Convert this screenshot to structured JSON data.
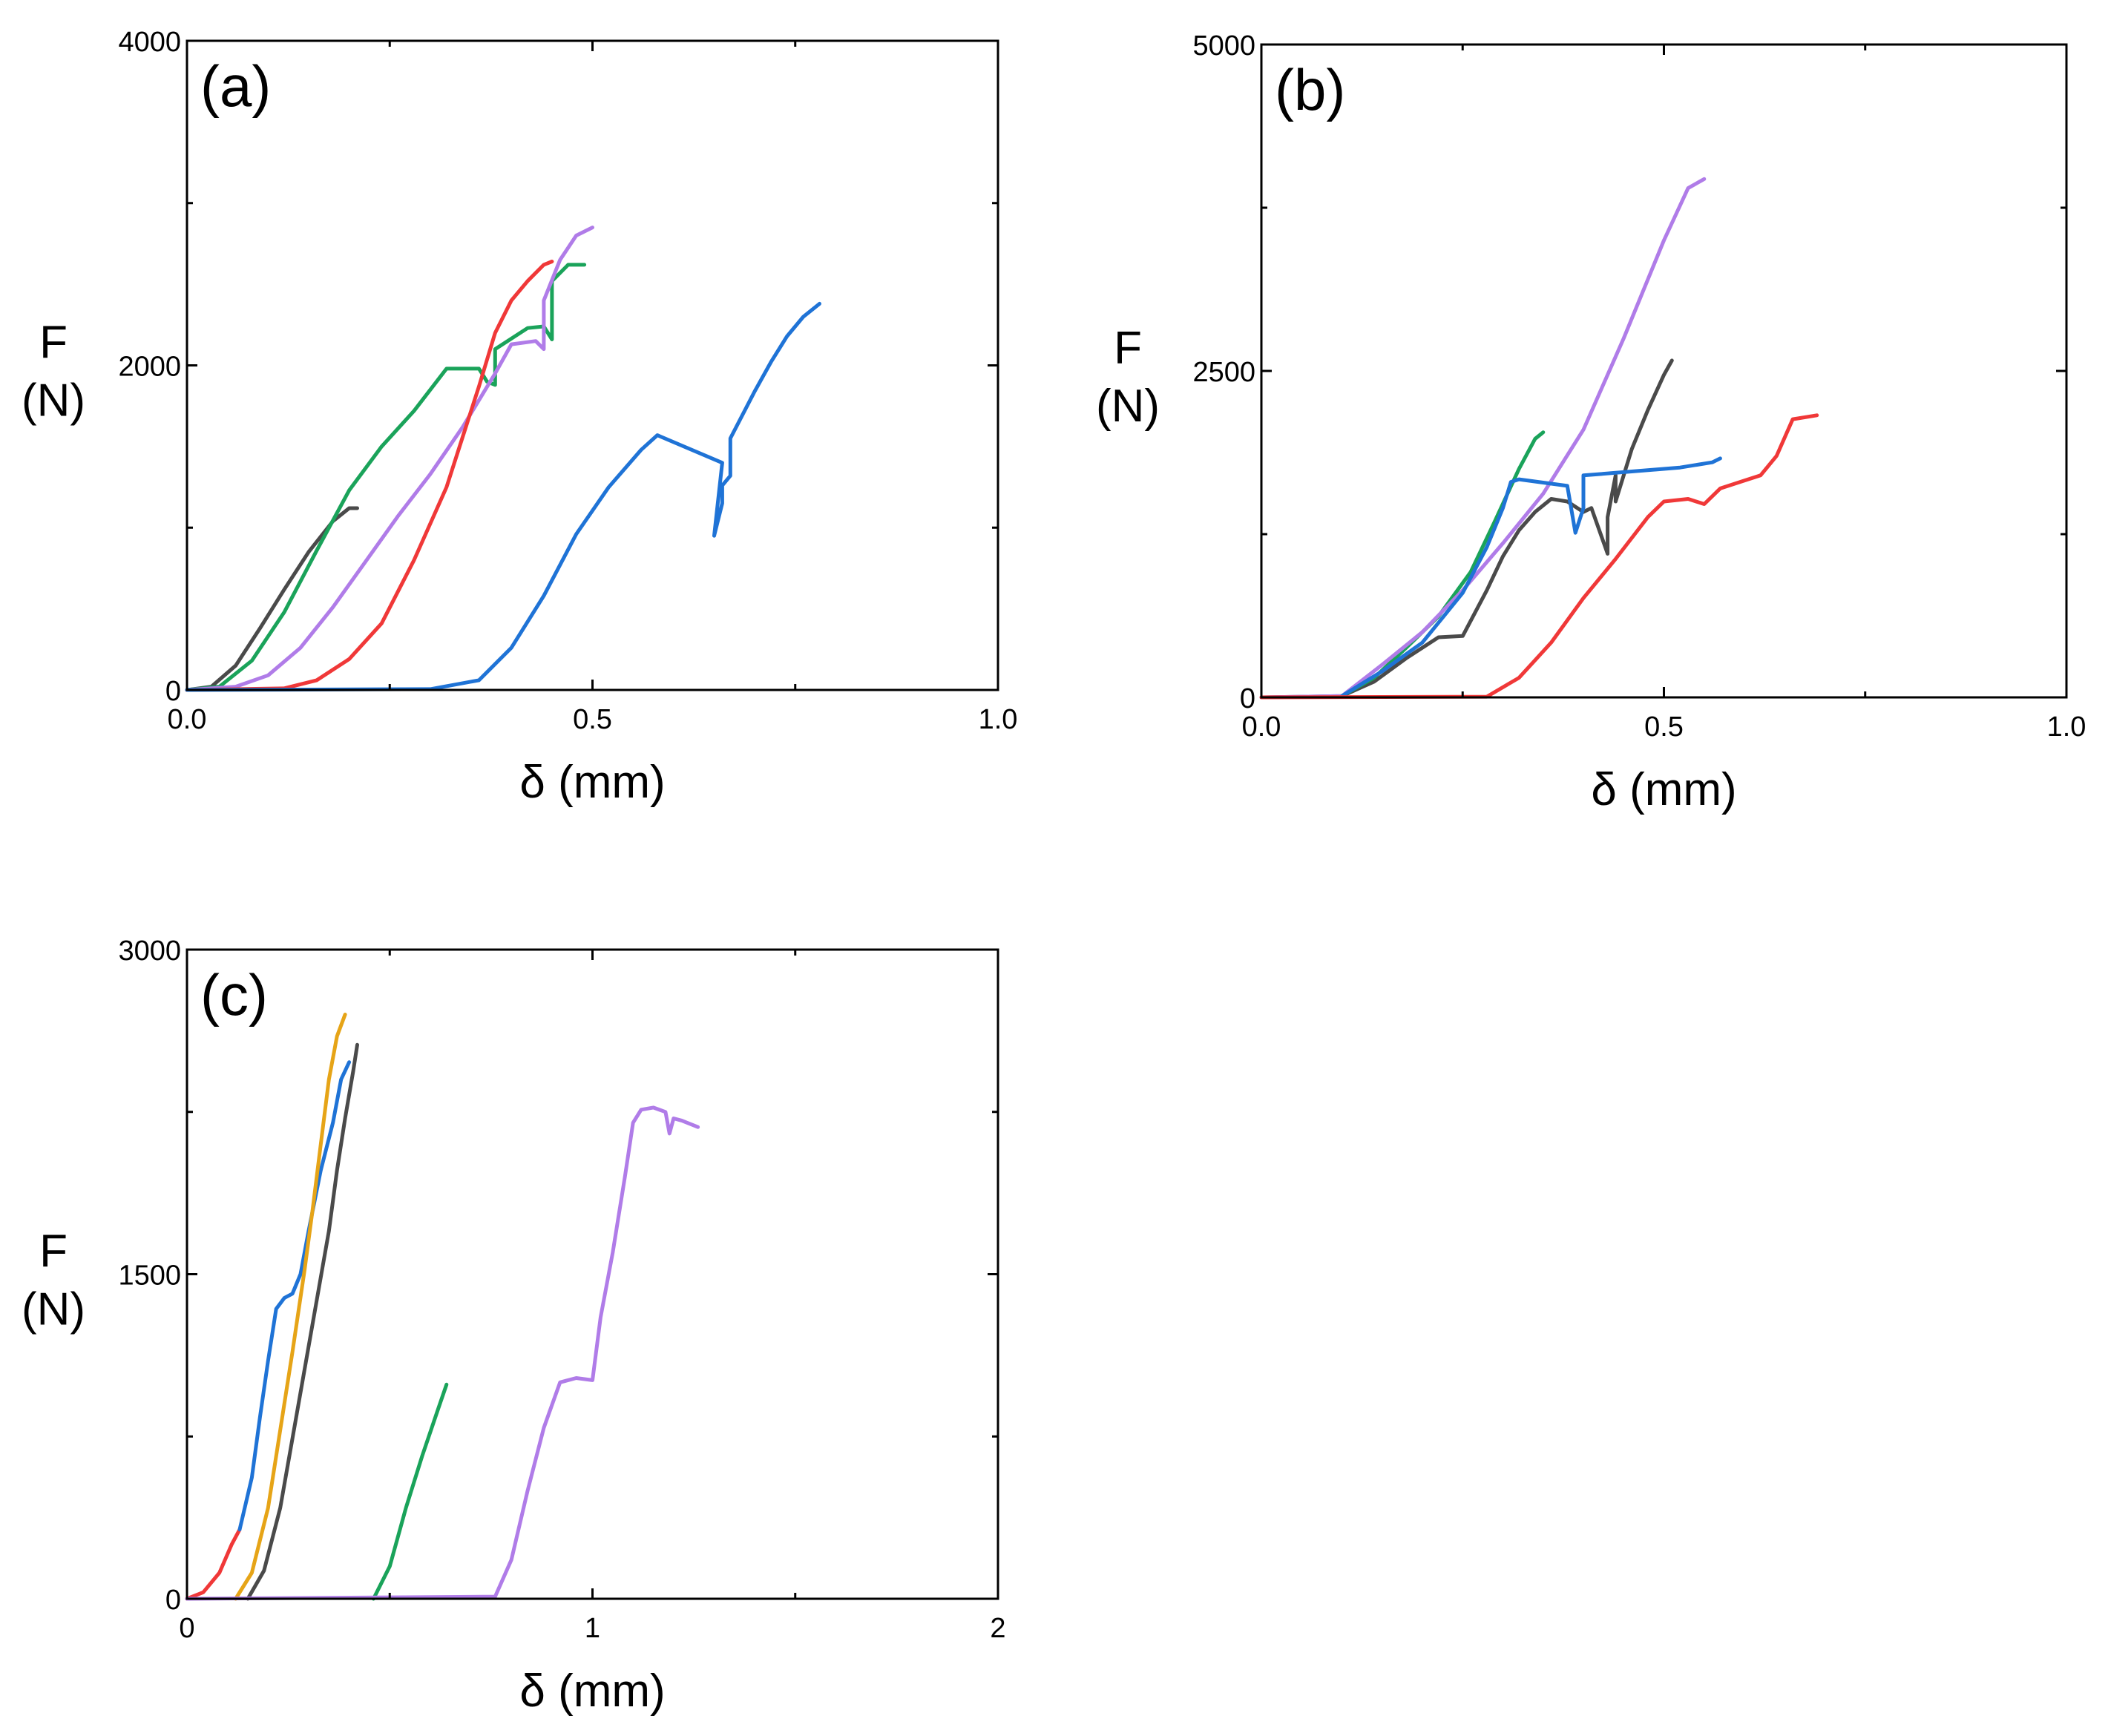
{
  "chart_data": [
    {
      "panel": "(a)",
      "type": "line",
      "xlabel": "δ (mm)",
      "ylabel_line1": "F",
      "ylabel_line2": "(N)",
      "xlim": [
        0,
        1.0
      ],
      "ylim": [
        0,
        4000
      ],
      "xticks": [
        0,
        0.5,
        1.0
      ],
      "xtick_labels": [
        "0.0",
        "0.5",
        "1.0"
      ],
      "yticks": [
        0,
        2000,
        4000
      ],
      "ytick_labels": [
        "0",
        "2000",
        "4000"
      ],
      "series": [
        {
          "name": "black",
          "color": "#4a4a4a",
          "x": [
            0,
            0.03,
            0.06,
            0.09,
            0.12,
            0.15,
            0.18,
            0.2,
            0.21
          ],
          "y": [
            0,
            20,
            150,
            380,
            620,
            850,
            1040,
            1120,
            1120
          ]
        },
        {
          "name": "green",
          "color": "#1aa35a",
          "x": [
            0,
            0.04,
            0.08,
            0.12,
            0.16,
            0.2,
            0.24,
            0.28,
            0.32,
            0.36,
            0.37,
            0.38,
            0.38,
            0.42,
            0.44,
            0.45,
            0.45,
            0.47,
            0.49
          ],
          "y": [
            0,
            20,
            180,
            480,
            860,
            1230,
            1500,
            1720,
            1980,
            1980,
            1900,
            1880,
            2100,
            2230,
            2240,
            2160,
            2520,
            2620,
            2620
          ]
        },
        {
          "name": "purple",
          "color": "#b07ce8",
          "x": [
            0,
            0.06,
            0.1,
            0.14,
            0.18,
            0.22,
            0.26,
            0.3,
            0.34,
            0.38,
            0.4,
            0.43,
            0.44,
            0.44,
            0.46,
            0.48,
            0.5
          ],
          "y": [
            0,
            20,
            90,
            260,
            510,
            790,
            1070,
            1330,
            1620,
            1950,
            2130,
            2150,
            2100,
            2400,
            2650,
            2800,
            2850
          ]
        },
        {
          "name": "red",
          "color": "#f03838",
          "x": [
            0,
            0.12,
            0.16,
            0.2,
            0.24,
            0.28,
            0.32,
            0.34,
            0.36,
            0.38,
            0.4,
            0.42,
            0.44,
            0.45
          ],
          "y": [
            0,
            10,
            60,
            190,
            410,
            800,
            1250,
            1560,
            1870,
            2200,
            2400,
            2520,
            2620,
            2640
          ]
        },
        {
          "name": "blue",
          "color": "#1f73d6",
          "x": [
            0,
            0.3,
            0.36,
            0.4,
            0.44,
            0.48,
            0.52,
            0.56,
            0.58,
            0.66,
            0.65,
            0.66,
            0.66,
            0.67,
            0.67,
            0.7,
            0.72,
            0.74,
            0.76,
            0.78
          ],
          "y": [
            0,
            5,
            60,
            260,
            580,
            960,
            1250,
            1480,
            1570,
            1400,
            950,
            1150,
            1260,
            1320,
            1550,
            1840,
            2020,
            2180,
            2300,
            2380
          ]
        }
      ]
    },
    {
      "panel": "(b)",
      "type": "line",
      "xlabel": "δ (mm)",
      "ylabel_line1": "F",
      "ylabel_line2": "(N)",
      "xlim": [
        0,
        1.0
      ],
      "ylim": [
        0,
        5000
      ],
      "xticks": [
        0,
        0.5,
        1.0
      ],
      "xtick_labels": [
        "0.0",
        "0.5",
        "1.0"
      ],
      "yticks": [
        0,
        2500,
        5000
      ],
      "ytick_labels": [
        "0",
        "2500",
        "5000"
      ],
      "series": [
        {
          "name": "black",
          "color": "#4a4a4a",
          "x": [
            0,
            0.1,
            0.14,
            0.18,
            0.22,
            0.25,
            0.28,
            0.3,
            0.32,
            0.34,
            0.36,
            0.38,
            0.4,
            0.41,
            0.43,
            0.43,
            0.44,
            0.44,
            0.46,
            0.48,
            0.5,
            0.51
          ],
          "y": [
            0,
            10,
            120,
            300,
            460,
            470,
            820,
            1080,
            1280,
            1420,
            1520,
            1500,
            1420,
            1450,
            1100,
            1380,
            1700,
            1500,
            1900,
            2200,
            2470,
            2580
          ]
        },
        {
          "name": "green",
          "color": "#1aa35a",
          "x": [
            0.1,
            0.14,
            0.18,
            0.22,
            0.26,
            0.29,
            0.32,
            0.34,
            0.35
          ],
          "y": [
            10,
            150,
            380,
            620,
            960,
            1350,
            1750,
            1980,
            2030
          ]
        },
        {
          "name": "purple",
          "color": "#b07ce8",
          "x": [
            0,
            0.1,
            0.15,
            0.2,
            0.25,
            0.3,
            0.35,
            0.4,
            0.45,
            0.48,
            0.5,
            0.53,
            0.55
          ],
          "y": [
            0,
            10,
            250,
            500,
            820,
            1180,
            1560,
            2050,
            2750,
            3200,
            3500,
            3900,
            3970
          ]
        },
        {
          "name": "blue",
          "color": "#1f73d6",
          "x": [
            0.1,
            0.15,
            0.2,
            0.25,
            0.28,
            0.3,
            0.31,
            0.32,
            0.38,
            0.39,
            0.4,
            0.4,
            0.44,
            0.48,
            0.52,
            0.56,
            0.57
          ],
          "y": [
            10,
            200,
            420,
            800,
            1150,
            1450,
            1650,
            1670,
            1620,
            1260,
            1450,
            1700,
            1720,
            1740,
            1760,
            1800,
            1830
          ]
        },
        {
          "name": "red",
          "color": "#f03838",
          "x": [
            0,
            0.28,
            0.32,
            0.36,
            0.4,
            0.44,
            0.48,
            0.5,
            0.53,
            0.55,
            0.57,
            0.6,
            0.62,
            0.64,
            0.66,
            0.69
          ],
          "y": [
            0,
            5,
            150,
            420,
            760,
            1060,
            1380,
            1500,
            1520,
            1480,
            1600,
            1660,
            1700,
            1850,
            2130,
            2160
          ]
        }
      ]
    },
    {
      "panel": "(c)",
      "type": "line",
      "xlabel": "δ (mm)",
      "ylabel_line1": "F",
      "ylabel_line2": "(N)",
      "xlim": [
        0,
        2
      ],
      "ylim": [
        0,
        3000
      ],
      "xticks": [
        0,
        1,
        2
      ],
      "xtick_labels": [
        "0",
        "1",
        "2"
      ],
      "yticks": [
        0,
        1500,
        3000
      ],
      "ytick_labels": [
        "0",
        "1500",
        "3000"
      ],
      "series": [
        {
          "name": "red",
          "color": "#f03838",
          "x": [
            0,
            0.04,
            0.08,
            0.11,
            0.13
          ],
          "y": [
            0,
            30,
            120,
            250,
            320
          ]
        },
        {
          "name": "blue",
          "color": "#1f73d6",
          "x": [
            0.13,
            0.16,
            0.18,
            0.2,
            0.22,
            0.24,
            0.26,
            0.28,
            0.3,
            0.33,
            0.36,
            0.38,
            0.4
          ],
          "y": [
            320,
            560,
            840,
            1100,
            1340,
            1390,
            1410,
            1500,
            1700,
            1980,
            2200,
            2400,
            2480
          ]
        },
        {
          "name": "orange",
          "color": "#e6a417",
          "x": [
            0.12,
            0.16,
            0.2,
            0.23,
            0.26,
            0.29,
            0.31,
            0.33,
            0.35,
            0.37,
            0.39
          ],
          "y": [
            0,
            120,
            420,
            780,
            1140,
            1520,
            1800,
            2100,
            2400,
            2600,
            2700
          ]
        },
        {
          "name": "black",
          "color": "#4a4a4a",
          "x": [
            0.15,
            0.19,
            0.23,
            0.26,
            0.29,
            0.32,
            0.35,
            0.37,
            0.39,
            0.41,
            0.42
          ],
          "y": [
            0,
            130,
            420,
            740,
            1060,
            1380,
            1700,
            1980,
            2220,
            2440,
            2560
          ]
        },
        {
          "name": "green",
          "color": "#1aa35a",
          "x": [
            0.46,
            0.5,
            0.54,
            0.58,
            0.62,
            0.64
          ],
          "y": [
            0,
            150,
            420,
            660,
            880,
            990
          ]
        },
        {
          "name": "purple",
          "color": "#b07ce8",
          "x": [
            0,
            0.76,
            0.8,
            0.84,
            0.88,
            0.92,
            0.96,
            1.0,
            1.02,
            1.05,
            1.08,
            1.1,
            1.12,
            1.15,
            1.18,
            1.19,
            1.2,
            1.22,
            1.26
          ],
          "y": [
            0,
            10,
            180,
            500,
            790,
            1000,
            1020,
            1010,
            1300,
            1600,
            1950,
            2200,
            2260,
            2270,
            2250,
            2150,
            2220,
            2210,
            2180
          ]
        }
      ]
    }
  ]
}
